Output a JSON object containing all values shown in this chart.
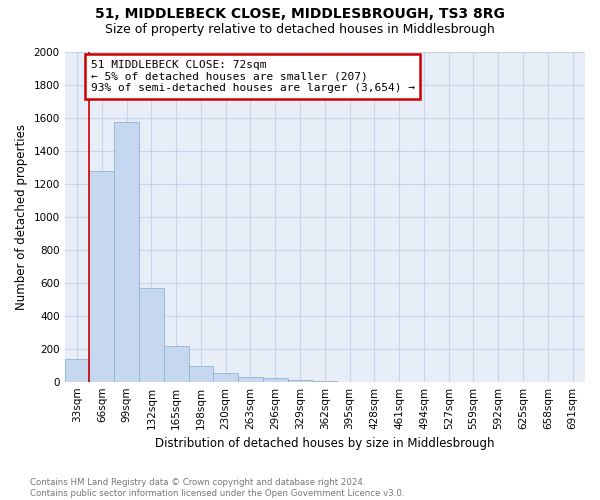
{
  "title": "51, MIDDLEBECK CLOSE, MIDDLESBROUGH, TS3 8RG",
  "subtitle": "Size of property relative to detached houses in Middlesbrough",
  "xlabel": "Distribution of detached houses by size in Middlesbrough",
  "ylabel": "Number of detached properties",
  "categories": [
    "33sqm",
    "66sqm",
    "99sqm",
    "132sqm",
    "165sqm",
    "198sqm",
    "230sqm",
    "263sqm",
    "296sqm",
    "329sqm",
    "362sqm",
    "395sqm",
    "428sqm",
    "461sqm",
    "494sqm",
    "527sqm",
    "559sqm",
    "592sqm",
    "625sqm",
    "658sqm",
    "691sqm"
  ],
  "values": [
    140,
    1275,
    1570,
    565,
    215,
    95,
    55,
    30,
    20,
    10,
    5,
    0,
    0,
    0,
    0,
    0,
    0,
    0,
    0,
    0,
    0
  ],
  "bar_color": "#c5d8ef",
  "bar_edge_color": "#90b4d4",
  "annotation_box_text": "51 MIDDLEBECK CLOSE: 72sqm\n← 5% of detached houses are smaller (207)\n93% of semi-detached houses are larger (3,654) →",
  "annotation_box_color": "white",
  "annotation_box_edge_color": "#cc0000",
  "vline_color": "#cc0000",
  "vline_x": 0.5,
  "grid_color": "#c8d4e8",
  "footer": "Contains HM Land Registry data © Crown copyright and database right 2024.\nContains public sector information licensed under the Open Government Licence v3.0.",
  "ylim": [
    0,
    2000
  ],
  "yticks": [
    0,
    200,
    400,
    600,
    800,
    1000,
    1200,
    1400,
    1600,
    1800,
    2000
  ],
  "background_color": "#e8eef8",
  "title_fontsize": 10,
  "subtitle_fontsize": 9,
  "xlabel_fontsize": 8.5,
  "ylabel_fontsize": 8.5,
  "tick_fontsize": 7.5,
  "annotation_fontsize": 8
}
